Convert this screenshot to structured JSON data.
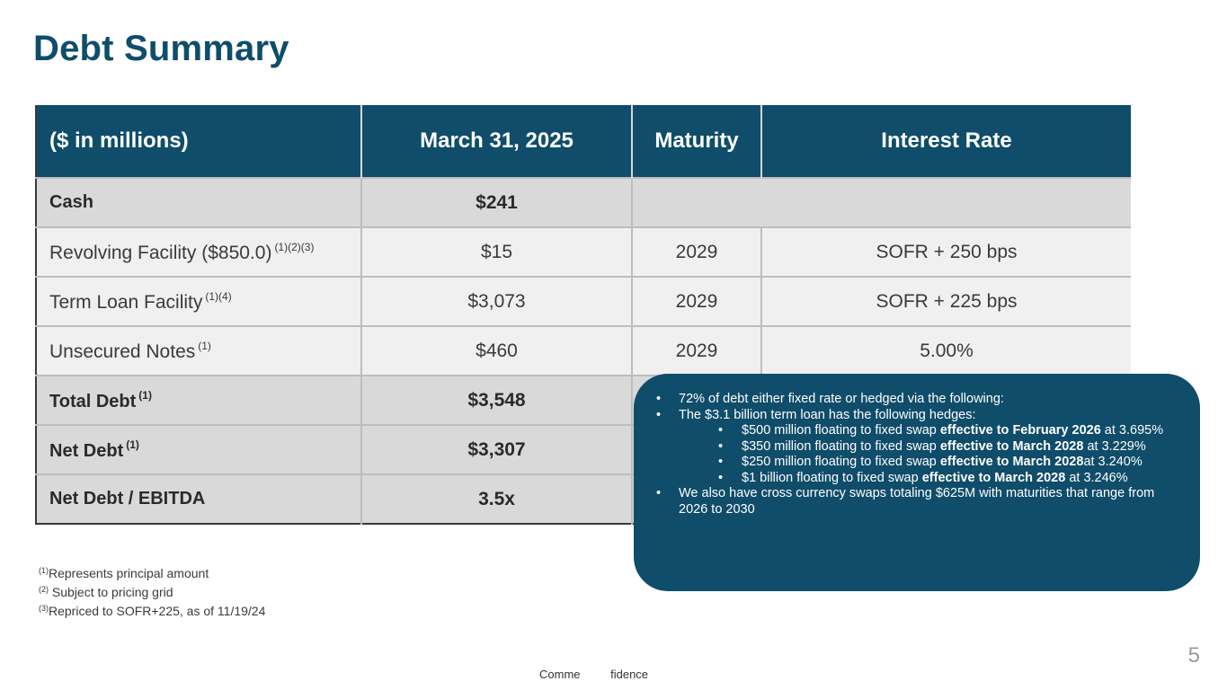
{
  "title": "Debt Summary",
  "table": {
    "headers": [
      "($ in millions)",
      "March 31, 2025",
      "Maturity",
      "Interest Rate"
    ],
    "rows": [
      {
        "label": "Cash",
        "fn": "",
        "amount": "$241",
        "maturity": "",
        "rate": ""
      },
      {
        "label": "Revolving Facility ($850.0)",
        "fn": "(1)(2)(3)",
        "amount": "$15",
        "maturity": "2029",
        "rate": "SOFR + 250 bps"
      },
      {
        "label": "Term Loan Facility",
        "fn": "(1)(4)",
        "amount": "$3,073",
        "maturity": "2029",
        "rate": "SOFR + 225 bps"
      },
      {
        "label": "Unsecured Notes",
        "fn": "(1)",
        "amount": "$460",
        "maturity": "2029",
        "rate": "5.00%"
      },
      {
        "label": "Total Debt",
        "fn": "(1)",
        "amount": "$3,548",
        "maturity": "",
        "rate": ""
      },
      {
        "label": "Net Debt",
        "fn": "(1)",
        "amount": "$3,307",
        "maturity": "",
        "rate": ""
      },
      {
        "label": "Net Debt / EBITDA",
        "fn": "",
        "amount": "3.5x",
        "maturity": "",
        "rate": ""
      }
    ]
  },
  "footnotes": [
    {
      "mark": "(1)",
      "text": "Represents principal amount"
    },
    {
      "mark": "(2)",
      "text": " Subject to pricing grid"
    },
    {
      "mark": "(3)",
      "text": "Repriced to SOFR+225, as of 11/19/24"
    }
  ],
  "callout": {
    "bullet1": "72% of debt either fixed rate or hedged via the following:",
    "bullet2": "The $3.1 billion term loan has the following hedges:",
    "hedges": [
      {
        "pre": "$500 million floating to fixed swap ",
        "bold": "effective to February 2026",
        "post": " at 3.695%"
      },
      {
        "pre": "$350 million floating to fixed swap ",
        "bold": "effective to March 2028",
        "post": " at 3.229%"
      },
      {
        "pre": "$250 million floating to fixed swap ",
        "bold": "effective to March 2028",
        "post": "at 3.240%"
      },
      {
        "pre": "$1 billion floating to fixed swap ",
        "bold": "effective to March 2028",
        "post": " at 3.246%"
      }
    ],
    "bullet3": "We also have cross currency swaps totaling $625M with maturities that range from 2026 to 2030"
  },
  "page_number": "5",
  "confidentiality": "Comme fidence",
  "colors": {
    "brand": "#0f4d6a",
    "row_bold": "#d9d9d9",
    "row_light": "#f0f0f0"
  }
}
